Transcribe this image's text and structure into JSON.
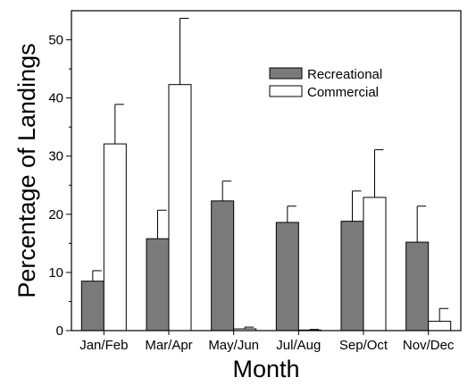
{
  "chart_data": {
    "type": "bar",
    "title": "",
    "xlabel": "Month",
    "ylabel": "Percentage of Landings",
    "ylim": [
      0,
      55
    ],
    "yticks": [
      0,
      10,
      20,
      30,
      40,
      50
    ],
    "grid": false,
    "legend_position": "top-right",
    "categories": [
      "Jan/Feb",
      "Mar/Apr",
      "May/Jun",
      "Jul/Aug",
      "Sep/Oct",
      "Nov/Dec"
    ],
    "series": [
      {
        "name": "Recreational",
        "color": "#7a7a7a",
        "values": [
          8.5,
          15.8,
          22.3,
          18.6,
          18.8,
          15.2
        ],
        "error": [
          1.8,
          4.9,
          3.4,
          2.8,
          5.2,
          6.2
        ]
      },
      {
        "name": "Commercial",
        "color": "#ffffff",
        "values": [
          32.1,
          42.3,
          0.3,
          0.1,
          22.9,
          1.6
        ],
        "error": [
          6.8,
          11.4,
          0.3,
          0.1,
          8.2,
          2.2
        ]
      }
    ]
  }
}
